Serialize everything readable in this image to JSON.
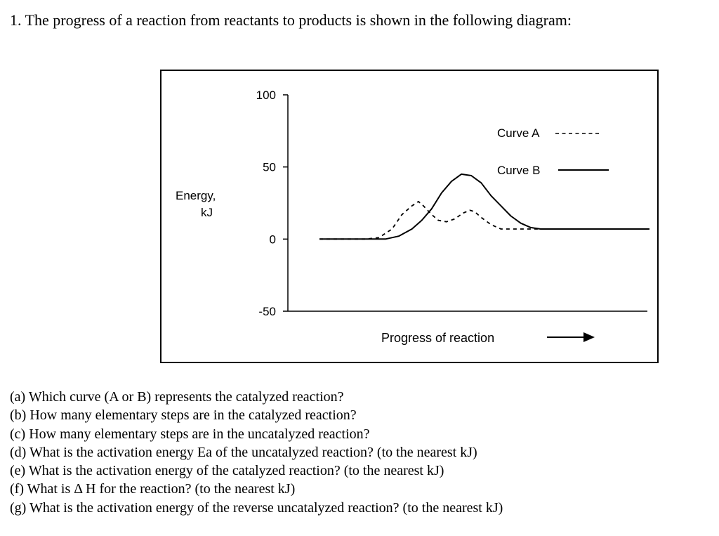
{
  "question": {
    "title": "1. The progress of a reaction from reactants to products is shown in the following diagram:"
  },
  "chart_data": {
    "type": "line",
    "title": "",
    "xlabel": "Progress of reaction",
    "ylabel_line1": "Energy,",
    "ylabel_line2": "kJ",
    "ylim": [
      -50,
      100
    ],
    "yticks": [
      100,
      50,
      0,
      -50
    ],
    "ytick_labels": [
      "100",
      "50",
      "0",
      "-50"
    ],
    "grid": false,
    "legend_position": "top-right",
    "legend": [
      {
        "label": "Curve A",
        "style": "dashed"
      },
      {
        "label": "Curve B",
        "style": "solid"
      }
    ],
    "series": [
      {
        "name": "Curve A",
        "style": "dashed",
        "points": [
          [
            0.0,
            0
          ],
          [
            0.14,
            0
          ],
          [
            0.18,
            1
          ],
          [
            0.22,
            7
          ],
          [
            0.25,
            17
          ],
          [
            0.28,
            23
          ],
          [
            0.3,
            26
          ],
          [
            0.315,
            23
          ],
          [
            0.34,
            17
          ],
          [
            0.36,
            13
          ],
          [
            0.385,
            12
          ],
          [
            0.41,
            14
          ],
          [
            0.435,
            18
          ],
          [
            0.455,
            20
          ],
          [
            0.47,
            19
          ],
          [
            0.49,
            15
          ],
          [
            0.52,
            10
          ],
          [
            0.55,
            7
          ],
          [
            0.65,
            7
          ],
          [
            1.0,
            7
          ]
        ]
      },
      {
        "name": "Curve B",
        "style": "solid",
        "points": [
          [
            0.0,
            0
          ],
          [
            0.2,
            0
          ],
          [
            0.24,
            2
          ],
          [
            0.28,
            7
          ],
          [
            0.31,
            13
          ],
          [
            0.34,
            21
          ],
          [
            0.37,
            32
          ],
          [
            0.4,
            40
          ],
          [
            0.43,
            45
          ],
          [
            0.46,
            44
          ],
          [
            0.49,
            39
          ],
          [
            0.52,
            30
          ],
          [
            0.55,
            23
          ],
          [
            0.58,
            16
          ],
          [
            0.61,
            11
          ],
          [
            0.64,
            8
          ],
          [
            0.67,
            7
          ],
          [
            0.75,
            7
          ],
          [
            1.0,
            7
          ]
        ]
      }
    ]
  },
  "questions": [
    "(a) Which curve (A or B) represents the catalyzed reaction?",
    "(b) How many elementary steps are in the catalyzed reaction?",
    "(c) How many elementary steps are in the uncatalyzed reaction?",
    "(d) What is the activation energy Ea of the uncatalyzed reaction? (to the nearest kJ)",
    "(e) What is the activation energy of the catalyzed reaction? (to the nearest kJ)",
    "(f) What is Δ  H for the reaction? (to the nearest kJ)",
    "(g) What is the activation energy of the reverse uncatalyzed reaction? (to the nearest kJ)"
  ]
}
